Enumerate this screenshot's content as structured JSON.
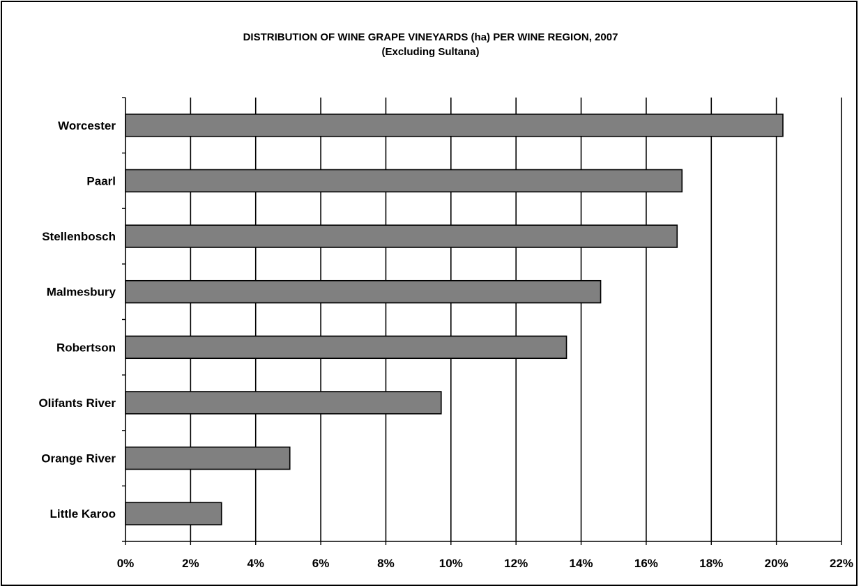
{
  "chart_data": {
    "type": "bar",
    "orientation": "horizontal",
    "title": "DISTRIBUTION OF WINE GRAPE VINEYARDS (ha) PER WINE REGION, 2007",
    "subtitle": "(Excluding Sultana)",
    "categories": [
      "Worcester",
      "Paarl",
      "Stellenbosch",
      "Malmesbury",
      "Robertson",
      "Olifants River",
      "Orange River",
      "Little Karoo"
    ],
    "values": [
      20.2,
      17.1,
      16.95,
      14.6,
      13.55,
      9.7,
      5.05,
      2.95
    ],
    "value_unit": "%",
    "xlim": [
      0,
      22
    ],
    "xticks": [
      0,
      2,
      4,
      6,
      8,
      10,
      12,
      14,
      16,
      18,
      20,
      22
    ],
    "xtick_labels": [
      "0%",
      "2%",
      "4%",
      "6%",
      "8%",
      "10%",
      "12%",
      "14%",
      "16%",
      "18%",
      "20%",
      "22%"
    ],
    "grid": "vertical",
    "legend": "none",
    "bar_color": "#808080",
    "bar_edge_color": "#000000"
  }
}
